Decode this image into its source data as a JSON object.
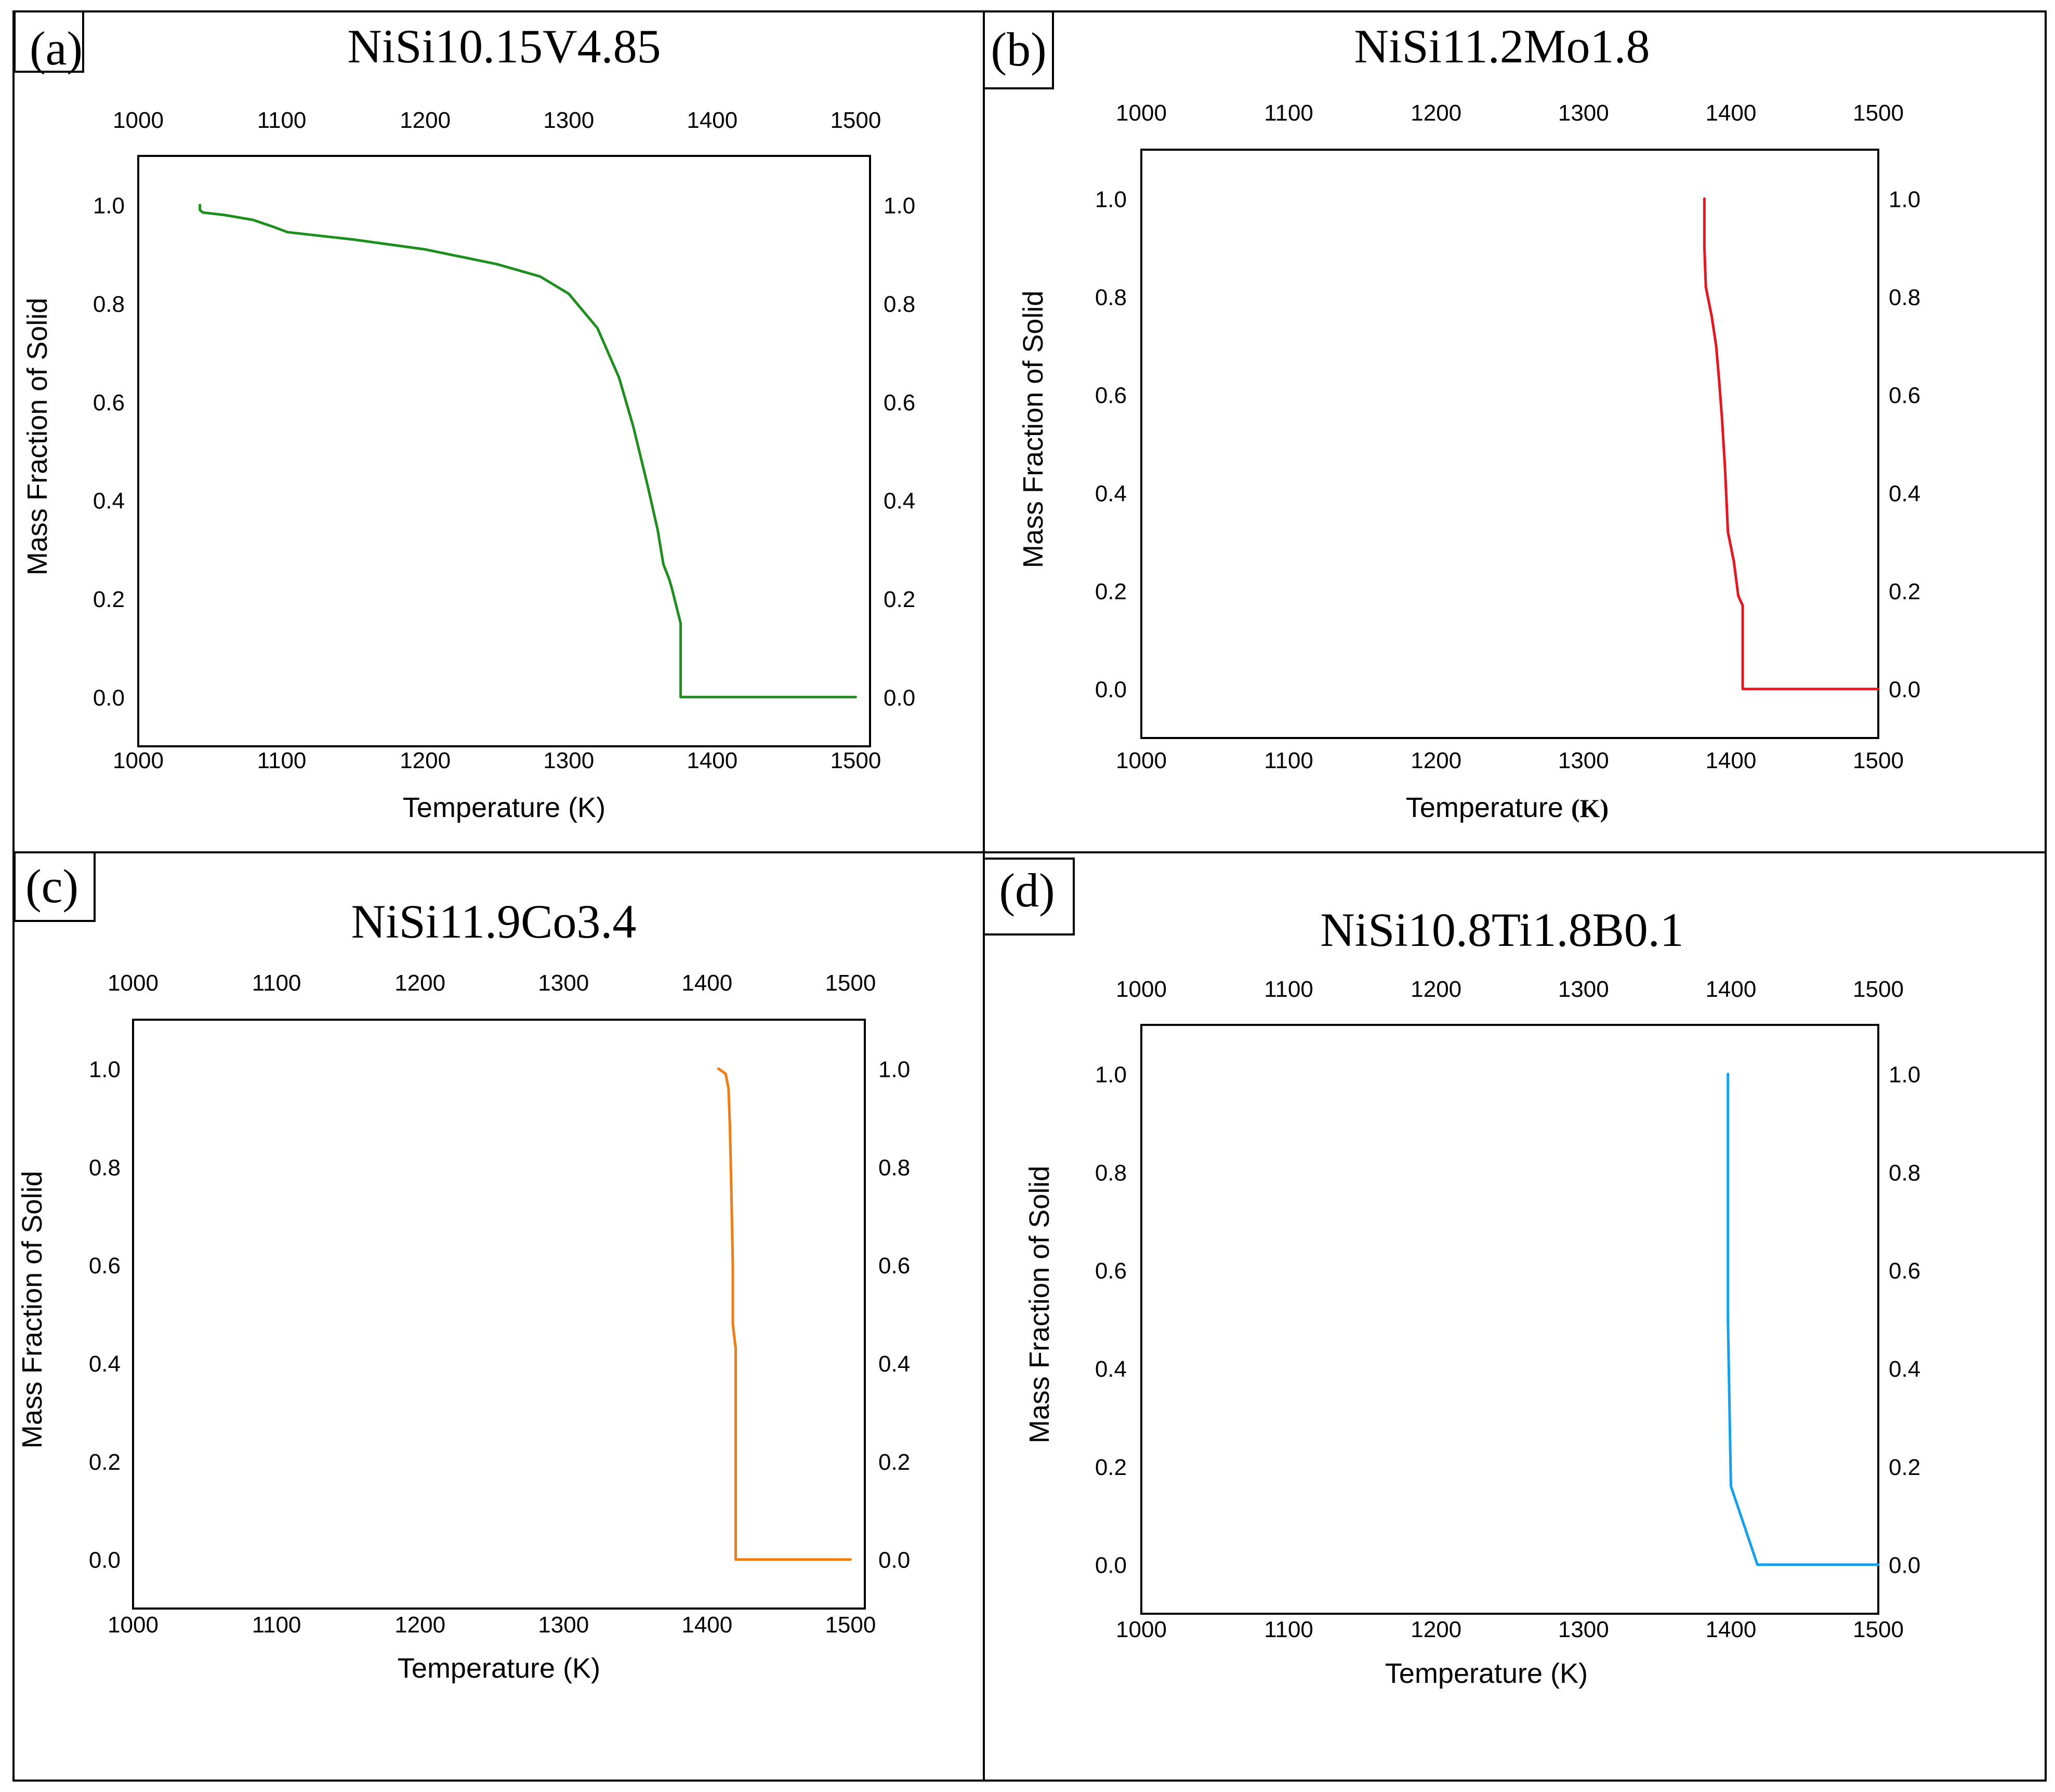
{
  "figure": {
    "background": "#ffffff",
    "border_color": "#000000"
  },
  "chart_data": [
    {
      "type": "line",
      "panel_label": "(a)",
      "title": "NiSi10.15V4.85",
      "xlabel": "Temperature (K)",
      "xlabel_unit": "",
      "ylabel": "Mass Fraction of Solid",
      "xlim": [
        1000,
        1510
      ],
      "ylim": [
        -0.1,
        1.1
      ],
      "xticks": [
        1000,
        1100,
        1200,
        1300,
        1400,
        1500
      ],
      "yticks": [
        0.0,
        0.2,
        0.4,
        0.6,
        0.8,
        1.0
      ],
      "xtick_labels": [
        "1000",
        "1100",
        "1200",
        "1300",
        "1400",
        "1500"
      ],
      "ytick_labels": [
        "0.0",
        "0.2",
        "0.4",
        "0.6",
        "0.8",
        "1.0"
      ],
      "grid": false,
      "color": "#1e8f1e",
      "series": [
        {
          "name": "Mass fraction of solid",
          "x": [
            1043,
            1043,
            1045,
            1060,
            1080,
            1095,
            1104,
            1150,
            1200,
            1250,
            1280,
            1300,
            1320,
            1335,
            1345,
            1355,
            1362,
            1366,
            1370,
            1372,
            1378,
            1378,
            1420,
            1460,
            1500
          ],
          "y": [
            1.0,
            0.99,
            0.985,
            0.98,
            0.97,
            0.955,
            0.945,
            0.93,
            0.91,
            0.88,
            0.855,
            0.82,
            0.75,
            0.65,
            0.55,
            0.43,
            0.34,
            0.27,
            0.24,
            0.22,
            0.15,
            0.0,
            0.0,
            0.0,
            0.0
          ]
        }
      ]
    },
    {
      "type": "line",
      "panel_label": "(b)",
      "title": "NiSi11.2Mo1.8",
      "xlabel": "Temperature ",
      "xlabel_unit": "(K)",
      "ylabel": "Mass Fraction of Solid",
      "xlim": [
        1000,
        1500
      ],
      "ylim": [
        -0.1,
        1.1
      ],
      "xticks": [
        1000,
        1100,
        1200,
        1300,
        1400,
        1500
      ],
      "yticks": [
        0.0,
        0.2,
        0.4,
        0.6,
        0.8,
        1.0
      ],
      "xtick_labels": [
        "1000",
        "1100",
        "1200",
        "1300",
        "1400",
        "1500"
      ],
      "ytick_labels": [
        "0.0",
        "0.2",
        "0.4",
        "0.6",
        "0.8",
        "1.0"
      ],
      "grid": false,
      "color": "#e8141e",
      "series": [
        {
          "name": "Mass fraction of solid",
          "x": [
            1382,
            1382,
            1383,
            1387,
            1390,
            1392,
            1394,
            1396,
            1398,
            1402,
            1405,
            1408,
            1408,
            1440,
            1470,
            1500
          ],
          "y": [
            1.0,
            0.9,
            0.82,
            0.76,
            0.7,
            0.63,
            0.55,
            0.45,
            0.32,
            0.26,
            0.19,
            0.17,
            0.0,
            0.0,
            0.0,
            0.0
          ]
        }
      ]
    },
    {
      "type": "line",
      "panel_label": "(c)",
      "title": "NiSi11.9Co3.4",
      "xlabel": "Temperature (K)",
      "xlabel_unit": "",
      "ylabel": "Mass Fraction of Solid",
      "xlim": [
        1000,
        1510
      ],
      "ylim": [
        -0.1,
        1.1
      ],
      "xticks": [
        1000,
        1100,
        1200,
        1300,
        1400,
        1500
      ],
      "yticks": [
        0.0,
        0.2,
        0.4,
        0.6,
        0.8,
        1.0
      ],
      "xtick_labels": [
        "1000",
        "1100",
        "1200",
        "1300",
        "1400",
        "1500"
      ],
      "ytick_labels": [
        "0.0",
        "0.2",
        "0.4",
        "0.6",
        "0.8",
        "1.0"
      ],
      "grid": false,
      "color": "#f07d14",
      "series": [
        {
          "name": "Mass fraction of solid",
          "x": [
            1408,
            1413,
            1415,
            1416,
            1417,
            1418,
            1418,
            1420,
            1420,
            1420,
            1460,
            1500
          ],
          "y": [
            1.0,
            0.99,
            0.96,
            0.88,
            0.75,
            0.6,
            0.48,
            0.43,
            0.2,
            0.0,
            0.0,
            0.0
          ]
        }
      ]
    },
    {
      "type": "line",
      "panel_label": "(d)",
      "title": "NiSi10.8Ti1.8B0.1",
      "xlabel": "Temperature (K)",
      "xlabel_unit": "",
      "ylabel": "Mass Fraction of Solid",
      "xlim": [
        1000,
        1500
      ],
      "ylim": [
        -0.1,
        1.1
      ],
      "xticks": [
        1000,
        1100,
        1200,
        1300,
        1400,
        1500
      ],
      "yticks": [
        0.0,
        0.2,
        0.4,
        0.6,
        0.8,
        1.0
      ],
      "xtick_labels": [
        "1000",
        "1100",
        "1200",
        "1300",
        "1400",
        "1500"
      ],
      "ytick_labels": [
        "0.0",
        "0.2",
        "0.4",
        "0.6",
        "0.8",
        "1.0"
      ],
      "grid": false,
      "color": "#14a0f0",
      "series": [
        {
          "name": "Mass fraction of solid",
          "x": [
            1398,
            1398,
            1400,
            1418,
            1460,
            1500
          ],
          "y": [
            1.0,
            0.5,
            0.16,
            0.0,
            0.0,
            0.0
          ]
        }
      ]
    }
  ]
}
